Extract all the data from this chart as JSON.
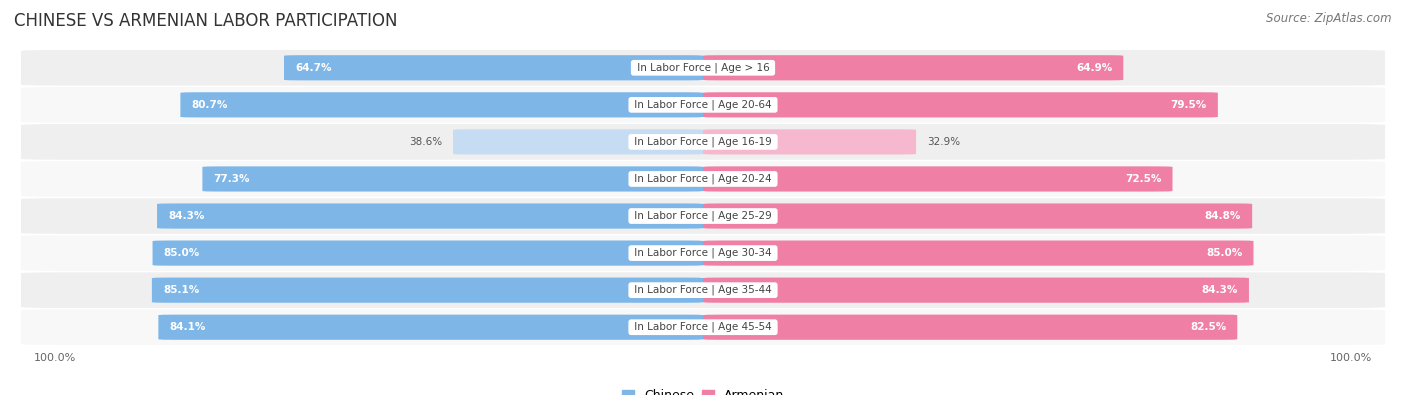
{
  "title": "CHINESE VS ARMENIAN LABOR PARTICIPATION",
  "source": "Source: ZipAtlas.com",
  "categories": [
    "In Labor Force | Age > 16",
    "In Labor Force | Age 20-64",
    "In Labor Force | Age 16-19",
    "In Labor Force | Age 20-24",
    "In Labor Force | Age 25-29",
    "In Labor Force | Age 30-34",
    "In Labor Force | Age 35-44",
    "In Labor Force | Age 45-54"
  ],
  "chinese_values": [
    64.7,
    80.7,
    38.6,
    77.3,
    84.3,
    85.0,
    85.1,
    84.1
  ],
  "armenian_values": [
    64.9,
    79.5,
    32.9,
    72.5,
    84.8,
    85.0,
    84.3,
    82.5
  ],
  "chinese_color": "#7EB6E8",
  "chinese_color_light": "#C5DCF2",
  "armenian_color": "#EF7FA4",
  "armenian_color_light": "#F5B8CE",
  "row_bg": "#EFEFEF",
  "row_bg_alt": "#F8F8F8",
  "title_fontsize": 12,
  "source_fontsize": 8.5,
  "label_fontsize": 7.5,
  "category_fontsize": 7.5,
  "legend_fontsize": 9,
  "axis_label_fontsize": 8,
  "bar_height": 0.68,
  "max_value": 100.0
}
